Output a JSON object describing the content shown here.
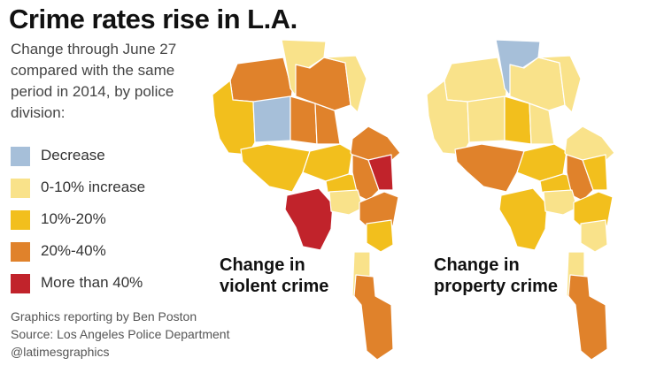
{
  "title": "Crime rates rise in L.A.",
  "subtitle": "Change through June 27 compared with the same period in 2014, by police division:",
  "legend": [
    {
      "label": "Decrease",
      "color": "#a6bfd9"
    },
    {
      "label": "0-10% increase",
      "color": "#f9e28a"
    },
    {
      "label": "10%-20%",
      "color": "#f2bf1d"
    },
    {
      "label": "20%-40%",
      "color": "#e0822b"
    },
    {
      "label": "More than 40%",
      "color": "#c1232b"
    }
  ],
  "maps": [
    {
      "label_line1": "Change in",
      "label_line2": "violent crime",
      "divisions": {
        "north_hills": "20%-40%",
        "sunland": "0-10% increase",
        "west_valley": "10%-20%",
        "mid_valley_west": "Decrease",
        "mid_valley_east": "20%-40%",
        "van_nuys": "20%-40%",
        "north_hollywood": "20%-40%",
        "foothill": "0-10% increase",
        "west_la": "10%-20%",
        "hollywood": "10%-20%",
        "rampart": "10%-20%",
        "northeast": "20%-40%",
        "central": "20%-40%",
        "hollenbeck": "More than 40%",
        "pacific": "More than 40%",
        "southwest": "0-10% increase",
        "south": "20%-40%",
        "southeast": "10%-20%",
        "harbor": "20%-40%"
      }
    },
    {
      "label_line1": "Change in",
      "label_line2": "property crime",
      "divisions": {
        "north_hills": "0-10% increase",
        "sunland": "Decrease",
        "west_valley": "0-10% increase",
        "mid_valley_west": "0-10% increase",
        "mid_valley_east": "10%-20%",
        "van_nuys": "0-10% increase",
        "north_hollywood": "0-10% increase",
        "foothill": "0-10% increase",
        "west_la": "20%-40%",
        "hollywood": "10%-20%",
        "rampart": "10%-20%",
        "northeast": "0-10% increase",
        "central": "20%-40%",
        "hollenbeck": "10%-20%",
        "pacific": "10%-20%",
        "southwest": "0-10% increase",
        "south": "10%-20%",
        "southeast": "0-10% increase",
        "harbor": "20%-40%"
      }
    }
  ],
  "credits": [
    "Graphics reporting by Ben Poston",
    "Source: Los Angeles Police Department",
    "@latimesgraphics"
  ]
}
